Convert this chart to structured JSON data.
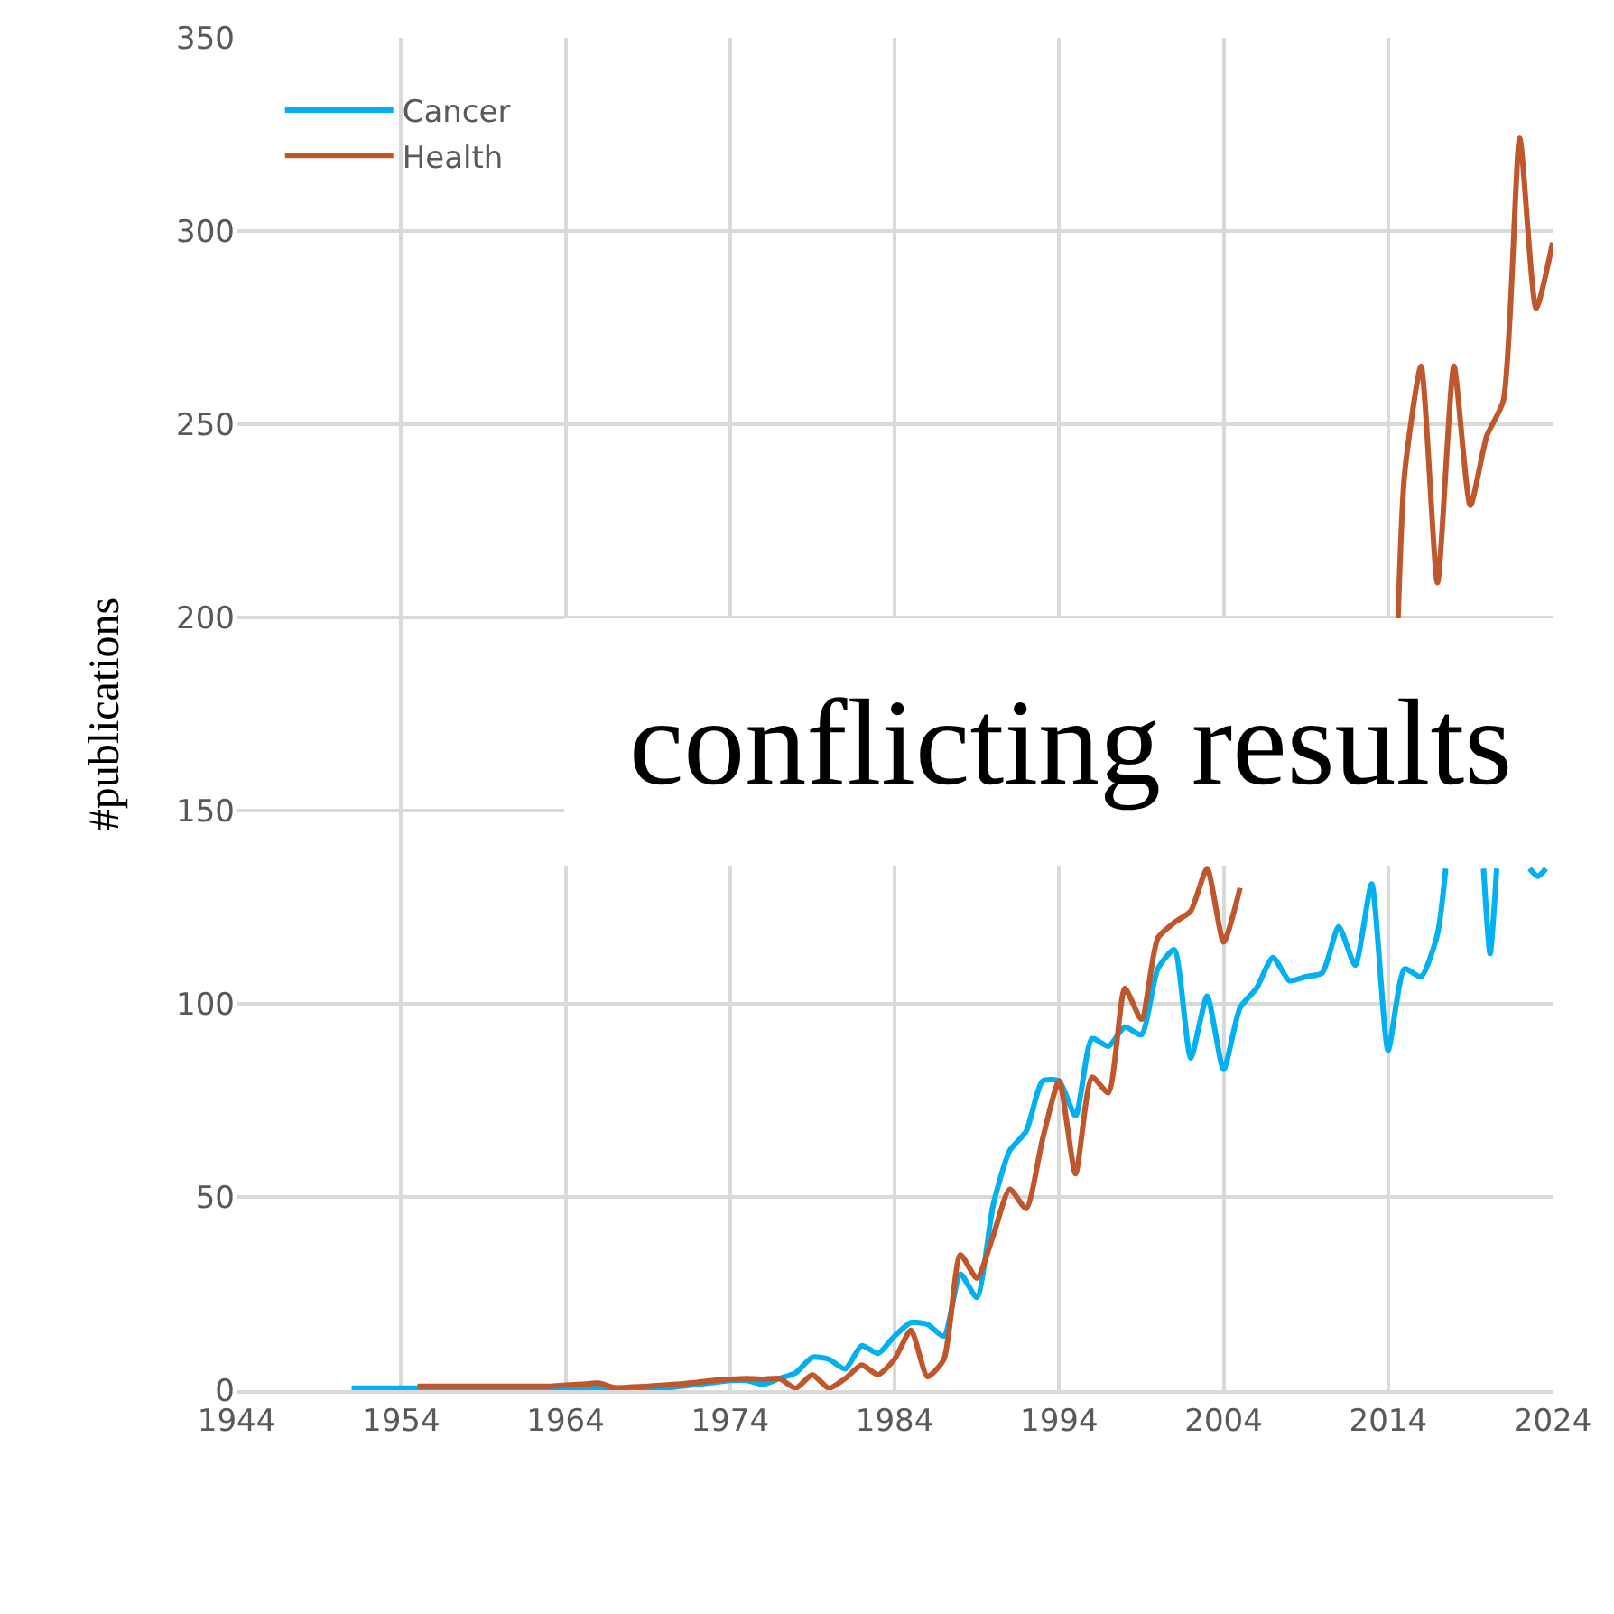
{
  "chart_data": {
    "type": "line",
    "ylabel": "#publications",
    "annotations": [
      "conflicting results"
    ],
    "xlim": [
      1944,
      2024
    ],
    "xticks": [
      1944,
      1954,
      1964,
      1974,
      1984,
      1994,
      2004,
      2014,
      2024
    ],
    "ylim": [
      0,
      350
    ],
    "yticks": [
      0,
      50,
      100,
      150,
      200,
      250,
      300,
      350
    ],
    "grid": true,
    "legend": "top left",
    "marker": "none",
    "line_style": "solid",
    "series": [
      {
        "name": "Cancer",
        "color": "#00b0f0",
        "x": [
          1951,
          1952,
          1953,
          1954,
          1955,
          1956,
          1957,
          1958,
          1959,
          1960,
          1961,
          1962,
          1963,
          1964,
          1965,
          1966,
          1967,
          1968,
          1969,
          1970,
          1971,
          1972,
          1973,
          1974,
          1975,
          1976,
          1977,
          1978,
          1979,
          1980,
          1981,
          1982,
          1983,
          1984,
          1985,
          1986,
          1987,
          1988,
          1989,
          1990,
          1991,
          1992,
          1993,
          1994,
          1995,
          1996,
          1997,
          1998,
          1999,
          2000,
          2001,
          2002,
          2003,
          2004,
          2005,
          2006,
          2007,
          2008,
          2009,
          2010,
          2011,
          2012,
          2013,
          2014,
          2015,
          2016,
          2017,
          2017.5,
          2018.5,
          2019.8,
          2020.2,
          2020.6,
          2021.5,
          2022.6,
          2023.1,
          2023.6
        ],
        "values": [
          0.5,
          0.5,
          0.5,
          0.5,
          0.5,
          0.5,
          0.5,
          0.5,
          0.5,
          0.5,
          0.5,
          0.5,
          0.5,
          0.5,
          0.5,
          0.5,
          0.5,
          0.5,
          0.5,
          0.5,
          1,
          1.5,
          2,
          2.5,
          2.5,
          1.5,
          3,
          4.5,
          8.5,
          8,
          5.5,
          11.5,
          9.5,
          14,
          17.5,
          17,
          14,
          30,
          24,
          48,
          62,
          67,
          80,
          80,
          71,
          91,
          89,
          94,
          92,
          109,
          114,
          86,
          102,
          83,
          99,
          104,
          112,
          106,
          107,
          108,
          120,
          110,
          131,
          88,
          109,
          107,
          118,
          135,
          null,
          135,
          113,
          135,
          null,
          135,
          133,
          135
        ]
      },
      {
        "name": "Health",
        "color": "#c0562b",
        "x": [
          1955,
          1956,
          1957,
          1958,
          1959,
          1960,
          1961,
          1962,
          1963,
          1964,
          1965,
          1966,
          1967,
          1968,
          1969,
          1970,
          1971,
          1972,
          1973,
          1974,
          1975,
          1976,
          1977,
          1978,
          1979,
          1980,
          1981,
          1982,
          1983,
          1984,
          1985,
          1986,
          1987,
          1988,
          1989,
          1990,
          1991,
          1992,
          1993,
          1994,
          1995,
          1996,
          1997,
          1998,
          1999,
          2000,
          2001,
          2002,
          2003,
          2004,
          2005,
          2006,
          2007,
          2008,
          2009,
          2010,
          2011,
          2012,
          2013,
          2014.6,
          2015,
          2016,
          2017,
          2018,
          2019,
          2020,
          2021,
          2022,
          2023,
          2024
        ],
        "values": [
          1,
          1,
          1,
          1,
          1,
          1,
          1,
          1,
          1,
          1.3,
          1.5,
          1.8,
          0.6,
          0.8,
          1,
          1.3,
          1.6,
          2,
          2.5,
          2.8,
          3,
          2.8,
          3,
          0.5,
          4,
          0.5,
          3,
          6.5,
          4,
          8,
          15.5,
          3.5,
          8,
          35,
          29,
          40,
          52,
          47,
          65,
          80,
          56,
          81,
          77,
          104,
          96,
          117,
          121,
          124,
          135,
          116,
          130,
          null,
          null,
          null,
          null,
          null,
          null,
          null,
          null,
          199,
          237,
          265,
          209,
          265,
          229,
          247,
          256,
          324,
          280,
          297
        ]
      }
    ]
  }
}
